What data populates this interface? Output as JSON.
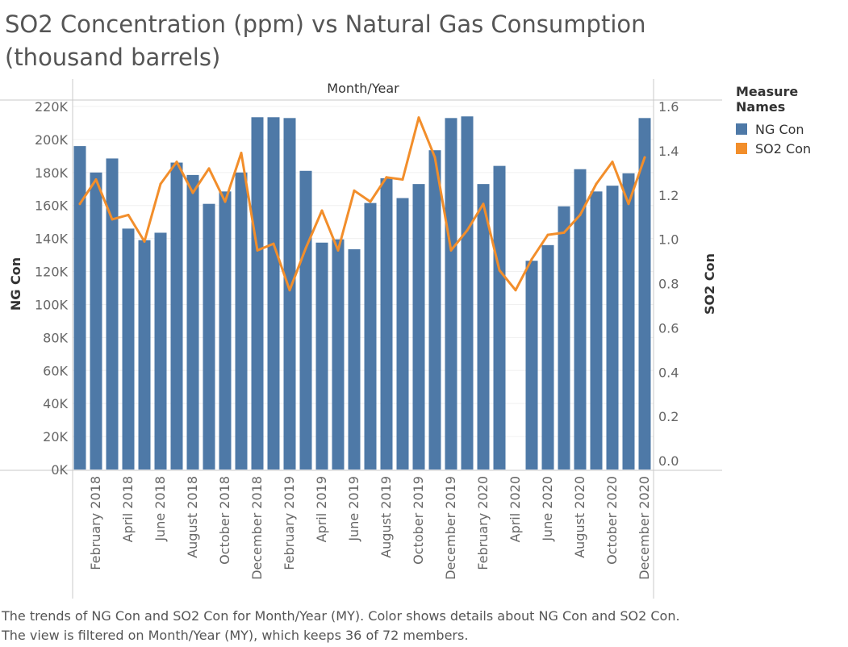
{
  "title": "SO2 Concentration (ppm) vs Natural Gas Consumption (thousand barrels)",
  "caption": "The trends of NG Con and SO2 Con for Month/Year (MY).  Color shows details about NG Con and SO2 Con. The view is filtered on Month/Year (MY), which keeps 36 of 72 members.",
  "legend": {
    "title": "Measure Names",
    "items": [
      {
        "label": "NG Con",
        "color": "#4e79a7"
      },
      {
        "label": "SO2 Con",
        "color": "#f28e2b"
      }
    ]
  },
  "chart_data": {
    "type": "bar",
    "title": "SO2 Concentration (ppm) vs Natural Gas Consumption (thousand barrels)",
    "xlabel": "Month/Year",
    "y_left_label": "NG Con",
    "y_right_label": "SO2 Con",
    "y_left_ticks": [
      "0K",
      "20K",
      "40K",
      "60K",
      "80K",
      "100K",
      "120K",
      "140K",
      "160K",
      "180K",
      "200K",
      "220K"
    ],
    "y_left_lim": [
      0,
      220000
    ],
    "y_right_ticks": [
      "0.0",
      "0.2",
      "0.4",
      "0.6",
      "0.8",
      "1.0",
      "1.2",
      "1.4",
      "1.6"
    ],
    "y_right_lim": [
      0,
      1.6
    ],
    "categories": [
      "January 2018",
      "February 2018",
      "March 2018",
      "April 2018",
      "May 2018",
      "June 2018",
      "July 2018",
      "August 2018",
      "September 2018",
      "October 2018",
      "November 2018",
      "December 2018",
      "January 2019",
      "February 2019",
      "March 2019",
      "April 2019",
      "May 2019",
      "June 2019",
      "July 2019",
      "August 2019",
      "September 2019",
      "October 2019",
      "November 2019",
      "December 2019",
      "January 2020",
      "February 2020",
      "March 2020",
      "April 2020",
      "May 2020",
      "June 2020",
      "July 2020",
      "August 2020",
      "September 2020",
      "October 2020",
      "November 2020",
      "December 2020"
    ],
    "tick_labels": [
      "February 2018",
      "April 2018",
      "June 2018",
      "August 2018",
      "October 2018",
      "December 2018",
      "February 2019",
      "April 2019",
      "June 2019",
      "August 2019",
      "October 2019",
      "December 2019",
      "February 2020",
      "April 2020",
      "June 2020",
      "August 2020",
      "October 2020",
      "December 2020"
    ],
    "series": [
      {
        "name": "NG Con",
        "type": "bar",
        "axis": "left",
        "color": "#4e79a7",
        "values": [
          196000,
          180000,
          188500,
          146000,
          139000,
          143500,
          186000,
          178500,
          161000,
          168500,
          180000,
          213500,
          213500,
          213000,
          181000,
          137500,
          139500,
          133500,
          161500,
          176500,
          164500,
          173000,
          193500,
          213000,
          214000,
          173000,
          184000,
          null,
          126500,
          136000,
          159500,
          182000,
          168500,
          172000,
          179500,
          213000
        ]
      },
      {
        "name": "SO2 Con",
        "type": "line",
        "axis": "right",
        "color": "#f28e2b",
        "values": [
          1.16,
          1.27,
          1.09,
          1.11,
          0.99,
          1.25,
          1.35,
          1.21,
          1.32,
          1.17,
          1.39,
          0.95,
          0.98,
          0.77,
          0.96,
          1.13,
          0.95,
          1.22,
          1.17,
          1.28,
          1.27,
          1.55,
          1.37,
          0.95,
          1.04,
          1.16,
          0.86,
          0.77,
          0.91,
          1.02,
          1.03,
          1.11,
          1.25,
          1.35,
          1.16,
          1.37
        ]
      }
    ],
    "grid": true,
    "legend_position": "right"
  }
}
